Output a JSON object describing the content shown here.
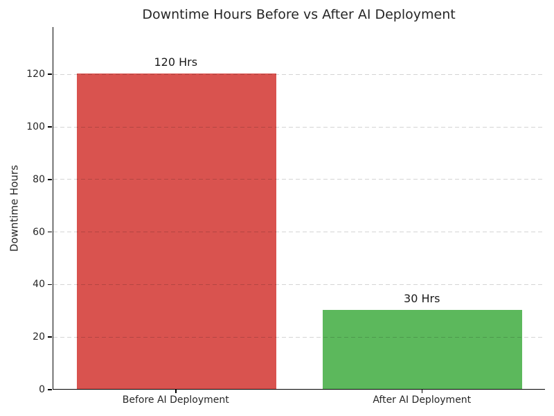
{
  "chart_data": {
    "type": "bar",
    "title": "Downtime Hours Before vs After AI Deployment",
    "categories": [
      "Before AI Deployment",
      "After AI Deployment"
    ],
    "values": [
      120,
      30
    ],
    "bar_labels": [
      "120 Hrs",
      "30 Hrs"
    ],
    "bar_colors": [
      "#d9534f",
      "#5cb85c"
    ],
    "xlabel": "",
    "ylabel": "Downtime Hours",
    "ylim": [
      0,
      138
    ],
    "yticks": [
      0,
      20,
      40,
      60,
      80,
      100,
      120
    ],
    "grid": "horizontal dashed, drawn over bars",
    "legend": "none",
    "background_color": "#ffffff",
    "text_color": "#262626"
  }
}
